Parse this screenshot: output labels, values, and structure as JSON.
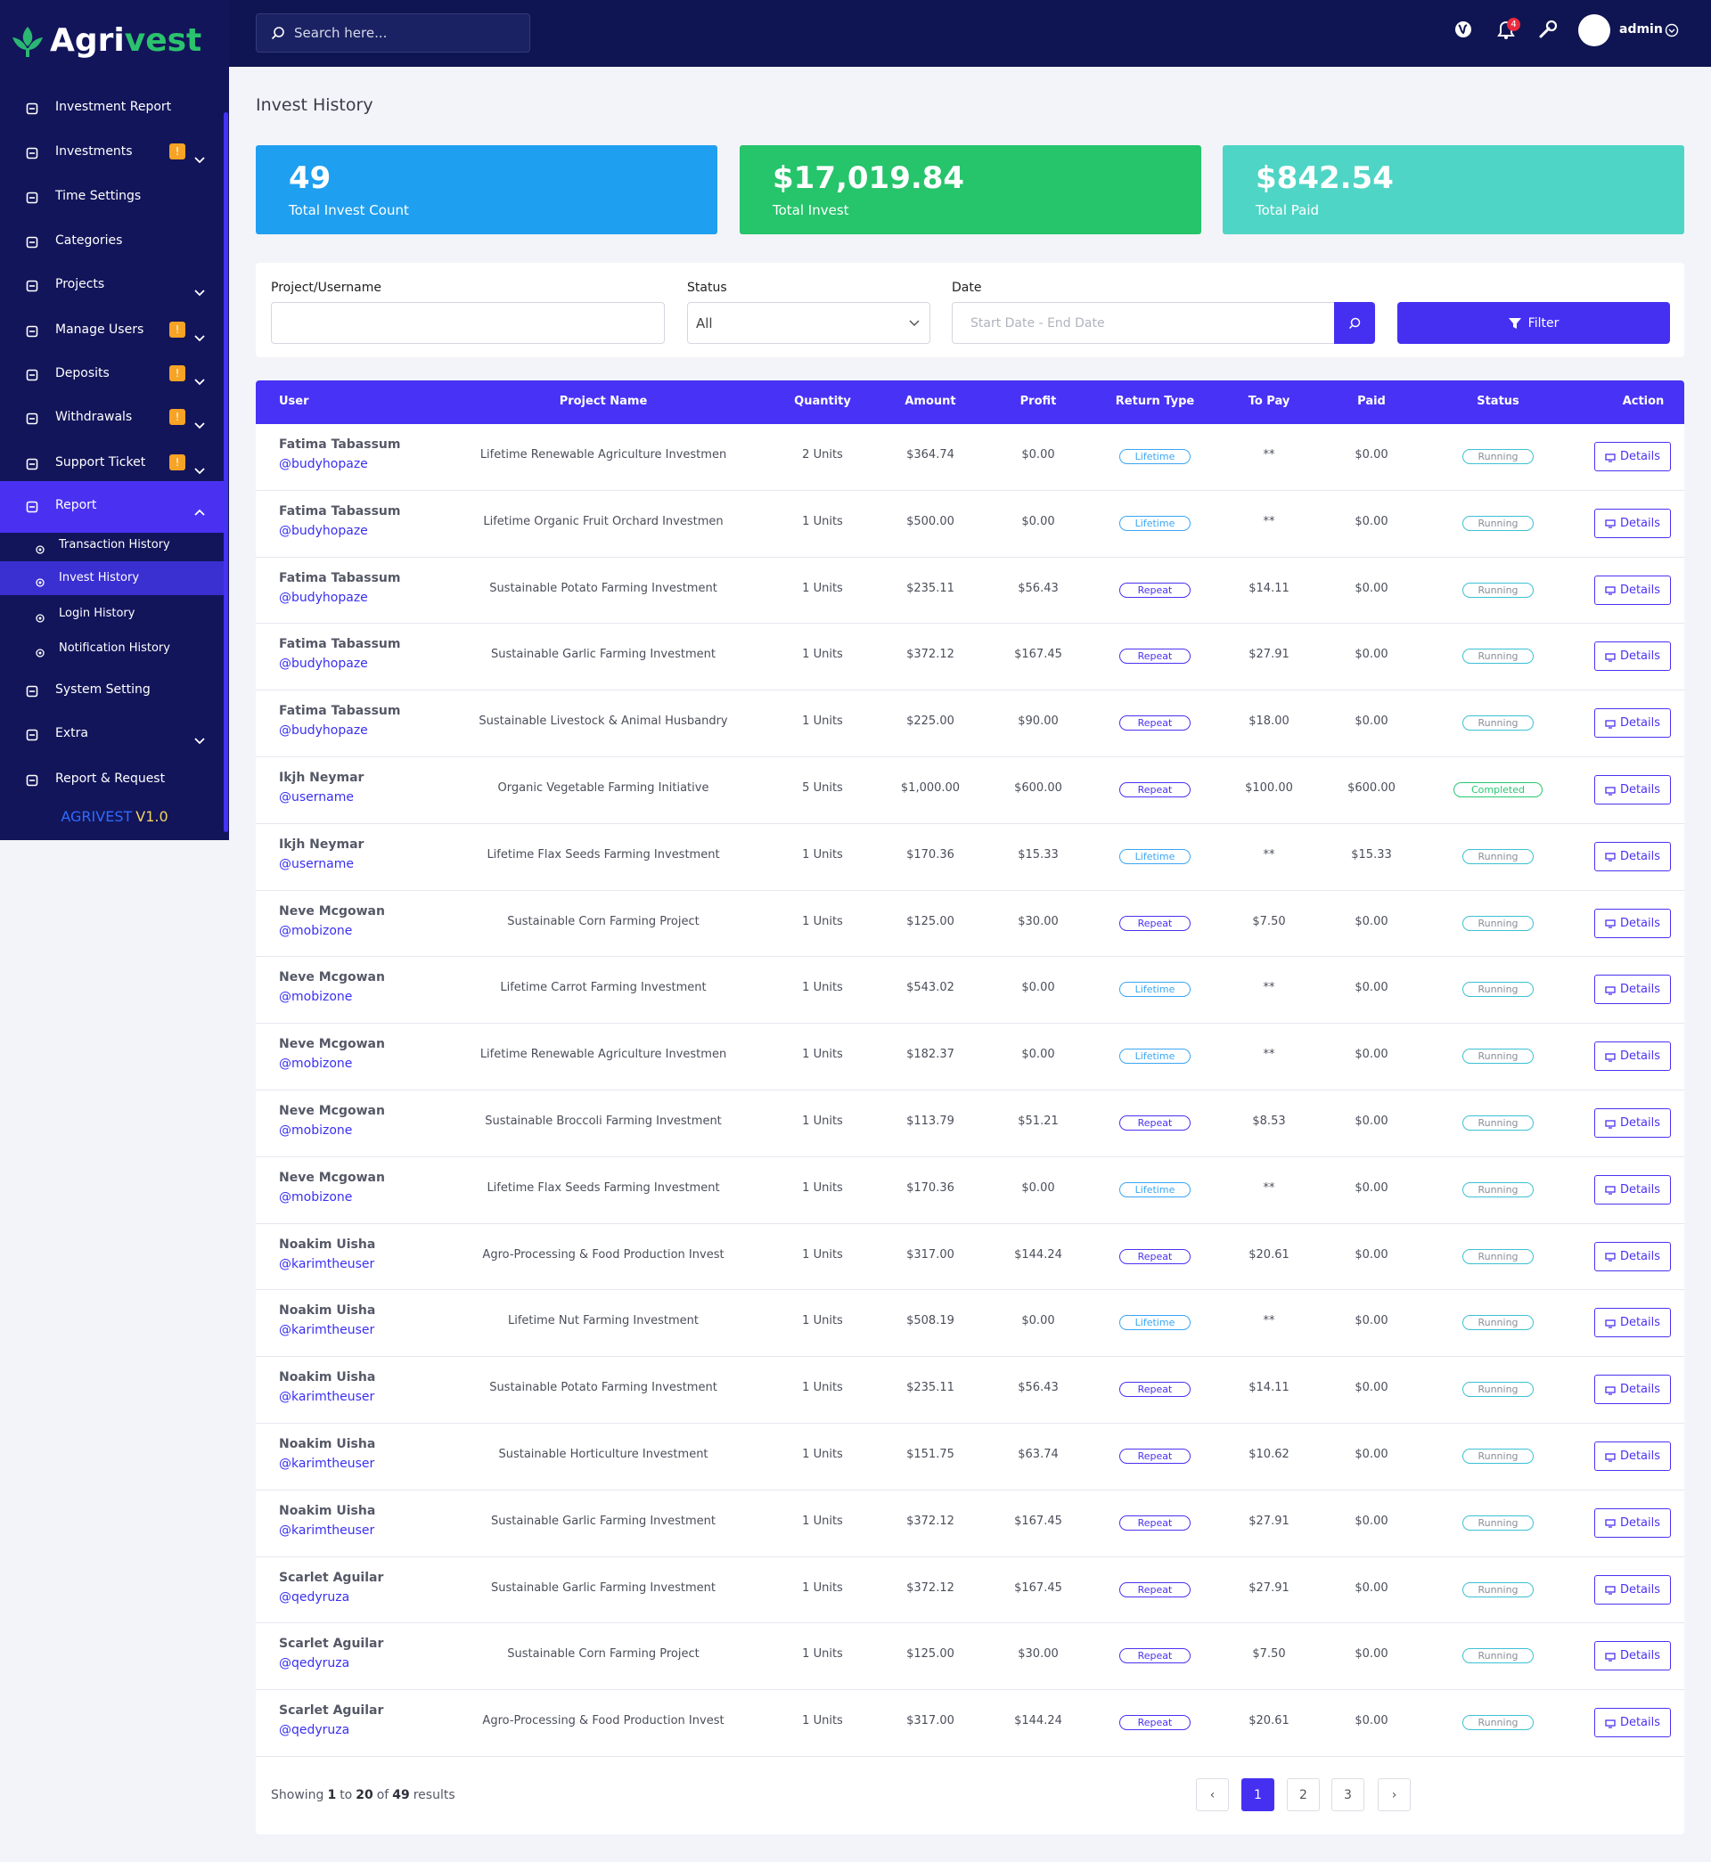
{
  "brand": {
    "first": "Agri",
    "second": "vest"
  },
  "search_placeholder": "Search here...",
  "notification_count": "4",
  "user_name": "admin",
  "sidebar": {
    "items": [
      {
        "label": "Investment Report"
      },
      {
        "label": "Investments",
        "badge": "!"
      },
      {
        "label": "Time Settings"
      },
      {
        "label": "Categories"
      },
      {
        "label": "Projects"
      },
      {
        "label": "Manage Users",
        "badge": "!"
      },
      {
        "label": "Deposits",
        "badge": "!"
      },
      {
        "label": "Withdrawals",
        "badge": "!"
      },
      {
        "label": "Support Ticket",
        "badge": "!"
      },
      {
        "label": "Report"
      }
    ],
    "report_children": [
      "Transaction History",
      "Invest History",
      "Login History",
      "Notification History"
    ],
    "items_after": [
      {
        "label": "System Setting"
      },
      {
        "label": "Extra"
      },
      {
        "label": "Report & Request"
      }
    ],
    "version": {
      "name": "AGRIVEST",
      "number": "V1.0"
    }
  },
  "page_title": "Invest History",
  "stats": [
    {
      "value": "49",
      "label": "Total Invest Count"
    },
    {
      "value": "$17,019.84",
      "label": "Total Invest"
    },
    {
      "value": "$842.54",
      "label": "Total Paid"
    }
  ],
  "filters": {
    "project_label": "Project/Username",
    "status_label": "Status",
    "status_value": "All",
    "date_label": "Date",
    "date_placeholder": "Start Date - End Date",
    "button": "Filter"
  },
  "table": {
    "headers": [
      "User",
      "Project Name",
      "Quantity",
      "Amount",
      "Profit",
      "Return Type",
      "To Pay",
      "Paid",
      "Status",
      "Action"
    ],
    "action_label": "Details",
    "rows": [
      [
        "Fatima Tabassum",
        "@budyhopaze",
        "Lifetime Renewable Agriculture Investmen",
        "2 Units",
        "$364.74",
        "$0.00",
        "Lifetime",
        "**",
        "$0.00",
        "Running"
      ],
      [
        "Fatima Tabassum",
        "@budyhopaze",
        "Lifetime Organic Fruit Orchard Investmen",
        "1 Units",
        "$500.00",
        "$0.00",
        "Lifetime",
        "**",
        "$0.00",
        "Running"
      ],
      [
        "Fatima Tabassum",
        "@budyhopaze",
        "Sustainable Potato Farming Investment",
        "1 Units",
        "$235.11",
        "$56.43",
        "Repeat",
        "$14.11",
        "$0.00",
        "Running"
      ],
      [
        "Fatima Tabassum",
        "@budyhopaze",
        "Sustainable Garlic Farming Investment",
        "1 Units",
        "$372.12",
        "$167.45",
        "Repeat",
        "$27.91",
        "$0.00",
        "Running"
      ],
      [
        "Fatima Tabassum",
        "@budyhopaze",
        "Sustainable Livestock & Animal Husbandry",
        "1 Units",
        "$225.00",
        "$90.00",
        "Repeat",
        "$18.00",
        "$0.00",
        "Running"
      ],
      [
        "Ikjh Neymar",
        "@username",
        "Organic Vegetable Farming Initiative",
        "5 Units",
        "$1,000.00",
        "$600.00",
        "Repeat",
        "$100.00",
        "$600.00",
        "Completed"
      ],
      [
        "Ikjh Neymar",
        "@username",
        "Lifetime Flax Seeds Farming Investment",
        "1 Units",
        "$170.36",
        "$15.33",
        "Lifetime",
        "**",
        "$15.33",
        "Running"
      ],
      [
        "Neve Mcgowan",
        "@mobizone",
        "Sustainable Corn Farming Project",
        "1 Units",
        "$125.00",
        "$30.00",
        "Repeat",
        "$7.50",
        "$0.00",
        "Running"
      ],
      [
        "Neve Mcgowan",
        "@mobizone",
        "Lifetime Carrot Farming Investment",
        "1 Units",
        "$543.02",
        "$0.00",
        "Lifetime",
        "**",
        "$0.00",
        "Running"
      ],
      [
        "Neve Mcgowan",
        "@mobizone",
        "Lifetime Renewable Agriculture Investmen",
        "1 Units",
        "$182.37",
        "$0.00",
        "Lifetime",
        "**",
        "$0.00",
        "Running"
      ],
      [
        "Neve Mcgowan",
        "@mobizone",
        "Sustainable Broccoli Farming Investment",
        "1 Units",
        "$113.79",
        "$51.21",
        "Repeat",
        "$8.53",
        "$0.00",
        "Running"
      ],
      [
        "Neve Mcgowan",
        "@mobizone",
        "Lifetime Flax Seeds Farming Investment",
        "1 Units",
        "$170.36",
        "$0.00",
        "Lifetime",
        "**",
        "$0.00",
        "Running"
      ],
      [
        "Noakim Uisha",
        "@karimtheuser",
        "Agro-Processing & Food Production Invest",
        "1 Units",
        "$317.00",
        "$144.24",
        "Repeat",
        "$20.61",
        "$0.00",
        "Running"
      ],
      [
        "Noakim Uisha",
        "@karimtheuser",
        "Lifetime Nut Farming Investment",
        "1 Units",
        "$508.19",
        "$0.00",
        "Lifetime",
        "**",
        "$0.00",
        "Running"
      ],
      [
        "Noakim Uisha",
        "@karimtheuser",
        "Sustainable Potato Farming Investment",
        "1 Units",
        "$235.11",
        "$56.43",
        "Repeat",
        "$14.11",
        "$0.00",
        "Running"
      ],
      [
        "Noakim Uisha",
        "@karimtheuser",
        "Sustainable Horticulture Investment",
        "1 Units",
        "$151.75",
        "$63.74",
        "Repeat",
        "$10.62",
        "$0.00",
        "Running"
      ],
      [
        "Noakim Uisha",
        "@karimtheuser",
        "Sustainable Garlic Farming Investment",
        "1 Units",
        "$372.12",
        "$167.45",
        "Repeat",
        "$27.91",
        "$0.00",
        "Running"
      ],
      [
        "Scarlet Aguilar",
        "@qedyruza",
        "Sustainable Garlic Farming Investment",
        "1 Units",
        "$372.12",
        "$167.45",
        "Repeat",
        "$27.91",
        "$0.00",
        "Running"
      ],
      [
        "Scarlet Aguilar",
        "@qedyruza",
        "Sustainable Corn Farming Project",
        "1 Units",
        "$125.00",
        "$30.00",
        "Repeat",
        "$7.50",
        "$0.00",
        "Running"
      ],
      [
        "Scarlet Aguilar",
        "@qedyruza",
        "Agro-Processing & Food Production Invest",
        "1 Units",
        "$317.00",
        "$144.24",
        "Repeat",
        "$20.61",
        "$0.00",
        "Running"
      ]
    ]
  },
  "pagination": {
    "prefix": "Showing",
    "from": "1",
    "to_word": "to",
    "to": "20",
    "of_word": "of",
    "total": "49",
    "suffix": "results",
    "pages": [
      "‹",
      "1",
      "2",
      "3",
      "›"
    ]
  }
}
